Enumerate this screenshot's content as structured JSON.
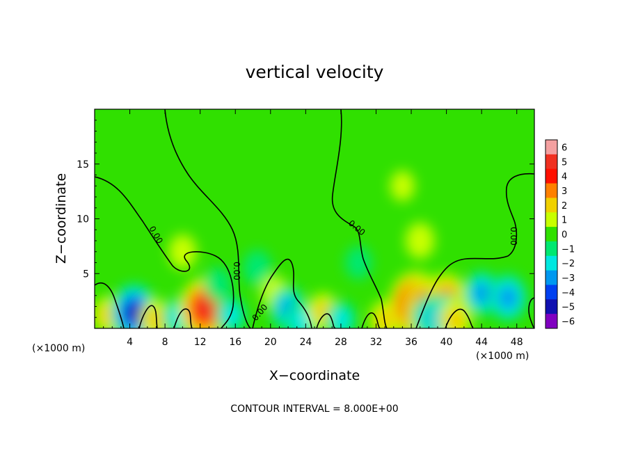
{
  "chart_data": {
    "type": "heatmap",
    "title": "vertical velocity",
    "xlabel": "X−coordinate",
    "ylabel": "Z−coordinate",
    "x_unit_left": "(×1000 m)",
    "x_unit_right": "(×1000 m)",
    "xlim": [
      0,
      50
    ],
    "ylim": [
      0,
      20
    ],
    "x_ticks": [
      4,
      8,
      12,
      16,
      20,
      24,
      28,
      32,
      36,
      40,
      44,
      48
    ],
    "x_tick_labels": [
      "4",
      "8",
      "12",
      "16",
      "20",
      "24",
      "28",
      "32",
      "36",
      "40",
      "44",
      "48"
    ],
    "y_ticks": [
      5,
      10,
      15
    ],
    "y_tick_labels": [
      "5",
      "10",
      "15"
    ],
    "contour_label": "0.00",
    "footer": "CONTOUR INTERVAL = 8.000E+00",
    "colorbar": {
      "range": [
        -6,
        6
      ],
      "labels": [
        "6",
        "5",
        "4",
        "3",
        "2",
        "1",
        "0",
        "−1",
        "−2",
        "−3",
        "−4",
        "−5",
        "−6"
      ],
      "colors": [
        "#f4a0a0",
        "#f03020",
        "#ff1000",
        "#ff8000",
        "#f0d000",
        "#c8ff00",
        "#30e000",
        "#00e870",
        "#00e8e0",
        "#0098f0",
        "#0040f0",
        "#1010b0",
        "#8000c0"
      ]
    },
    "features": [
      {
        "x": 1.5,
        "z": 1.2,
        "w": 1.5
      },
      {
        "x": 4.5,
        "z": 1.4,
        "w": -4.5
      },
      {
        "x": 7.0,
        "z": 0.8,
        "w": 1.8
      },
      {
        "x": 9.5,
        "z": 1.0,
        "w": -1.8
      },
      {
        "x": 12.5,
        "z": 1.8,
        "w": 5.0
      },
      {
        "x": 15.5,
        "z": 1.2,
        "w": -1.5
      },
      {
        "x": 18.5,
        "z": 5.5,
        "w": -1.2
      },
      {
        "x": 20.5,
        "z": 3.2,
        "w": 1.0
      },
      {
        "x": 22.0,
        "z": 1.8,
        "w": -2.5
      },
      {
        "x": 23.5,
        "z": 0.7,
        "w": -2.0
      },
      {
        "x": 26.0,
        "z": 1.5,
        "w": 1.5
      },
      {
        "x": 28.0,
        "z": 0.8,
        "w": -1.5
      },
      {
        "x": 33.0,
        "z": 0.8,
        "w": 1.5
      },
      {
        "x": 36.5,
        "z": 2.2,
        "w": 5.5
      },
      {
        "x": 38.0,
        "z": 2.0,
        "w": 4.5
      },
      {
        "x": 40.0,
        "z": 2.8,
        "w": 3.0
      },
      {
        "x": 38.2,
        "z": 1.0,
        "w": -2.5
      },
      {
        "x": 40.0,
        "z": 0.8,
        "w": -3.5
      },
      {
        "x": 41.0,
        "z": 0.8,
        "w": 2.0
      },
      {
        "x": 44.0,
        "z": 3.2,
        "w": -2.5
      },
      {
        "x": 47.0,
        "z": 2.8,
        "w": -3.0
      },
      {
        "x": 10.0,
        "z": 7.0,
        "w": 1.0
      },
      {
        "x": 37.0,
        "z": 8.0,
        "w": 1.2
      },
      {
        "x": 30.0,
        "z": 6.0,
        "w": -0.8
      },
      {
        "x": 35.0,
        "z": 13.0,
        "w": 0.4
      },
      {
        "x": 14.0,
        "z": 4.0,
        "w": -1.0
      }
    ]
  }
}
